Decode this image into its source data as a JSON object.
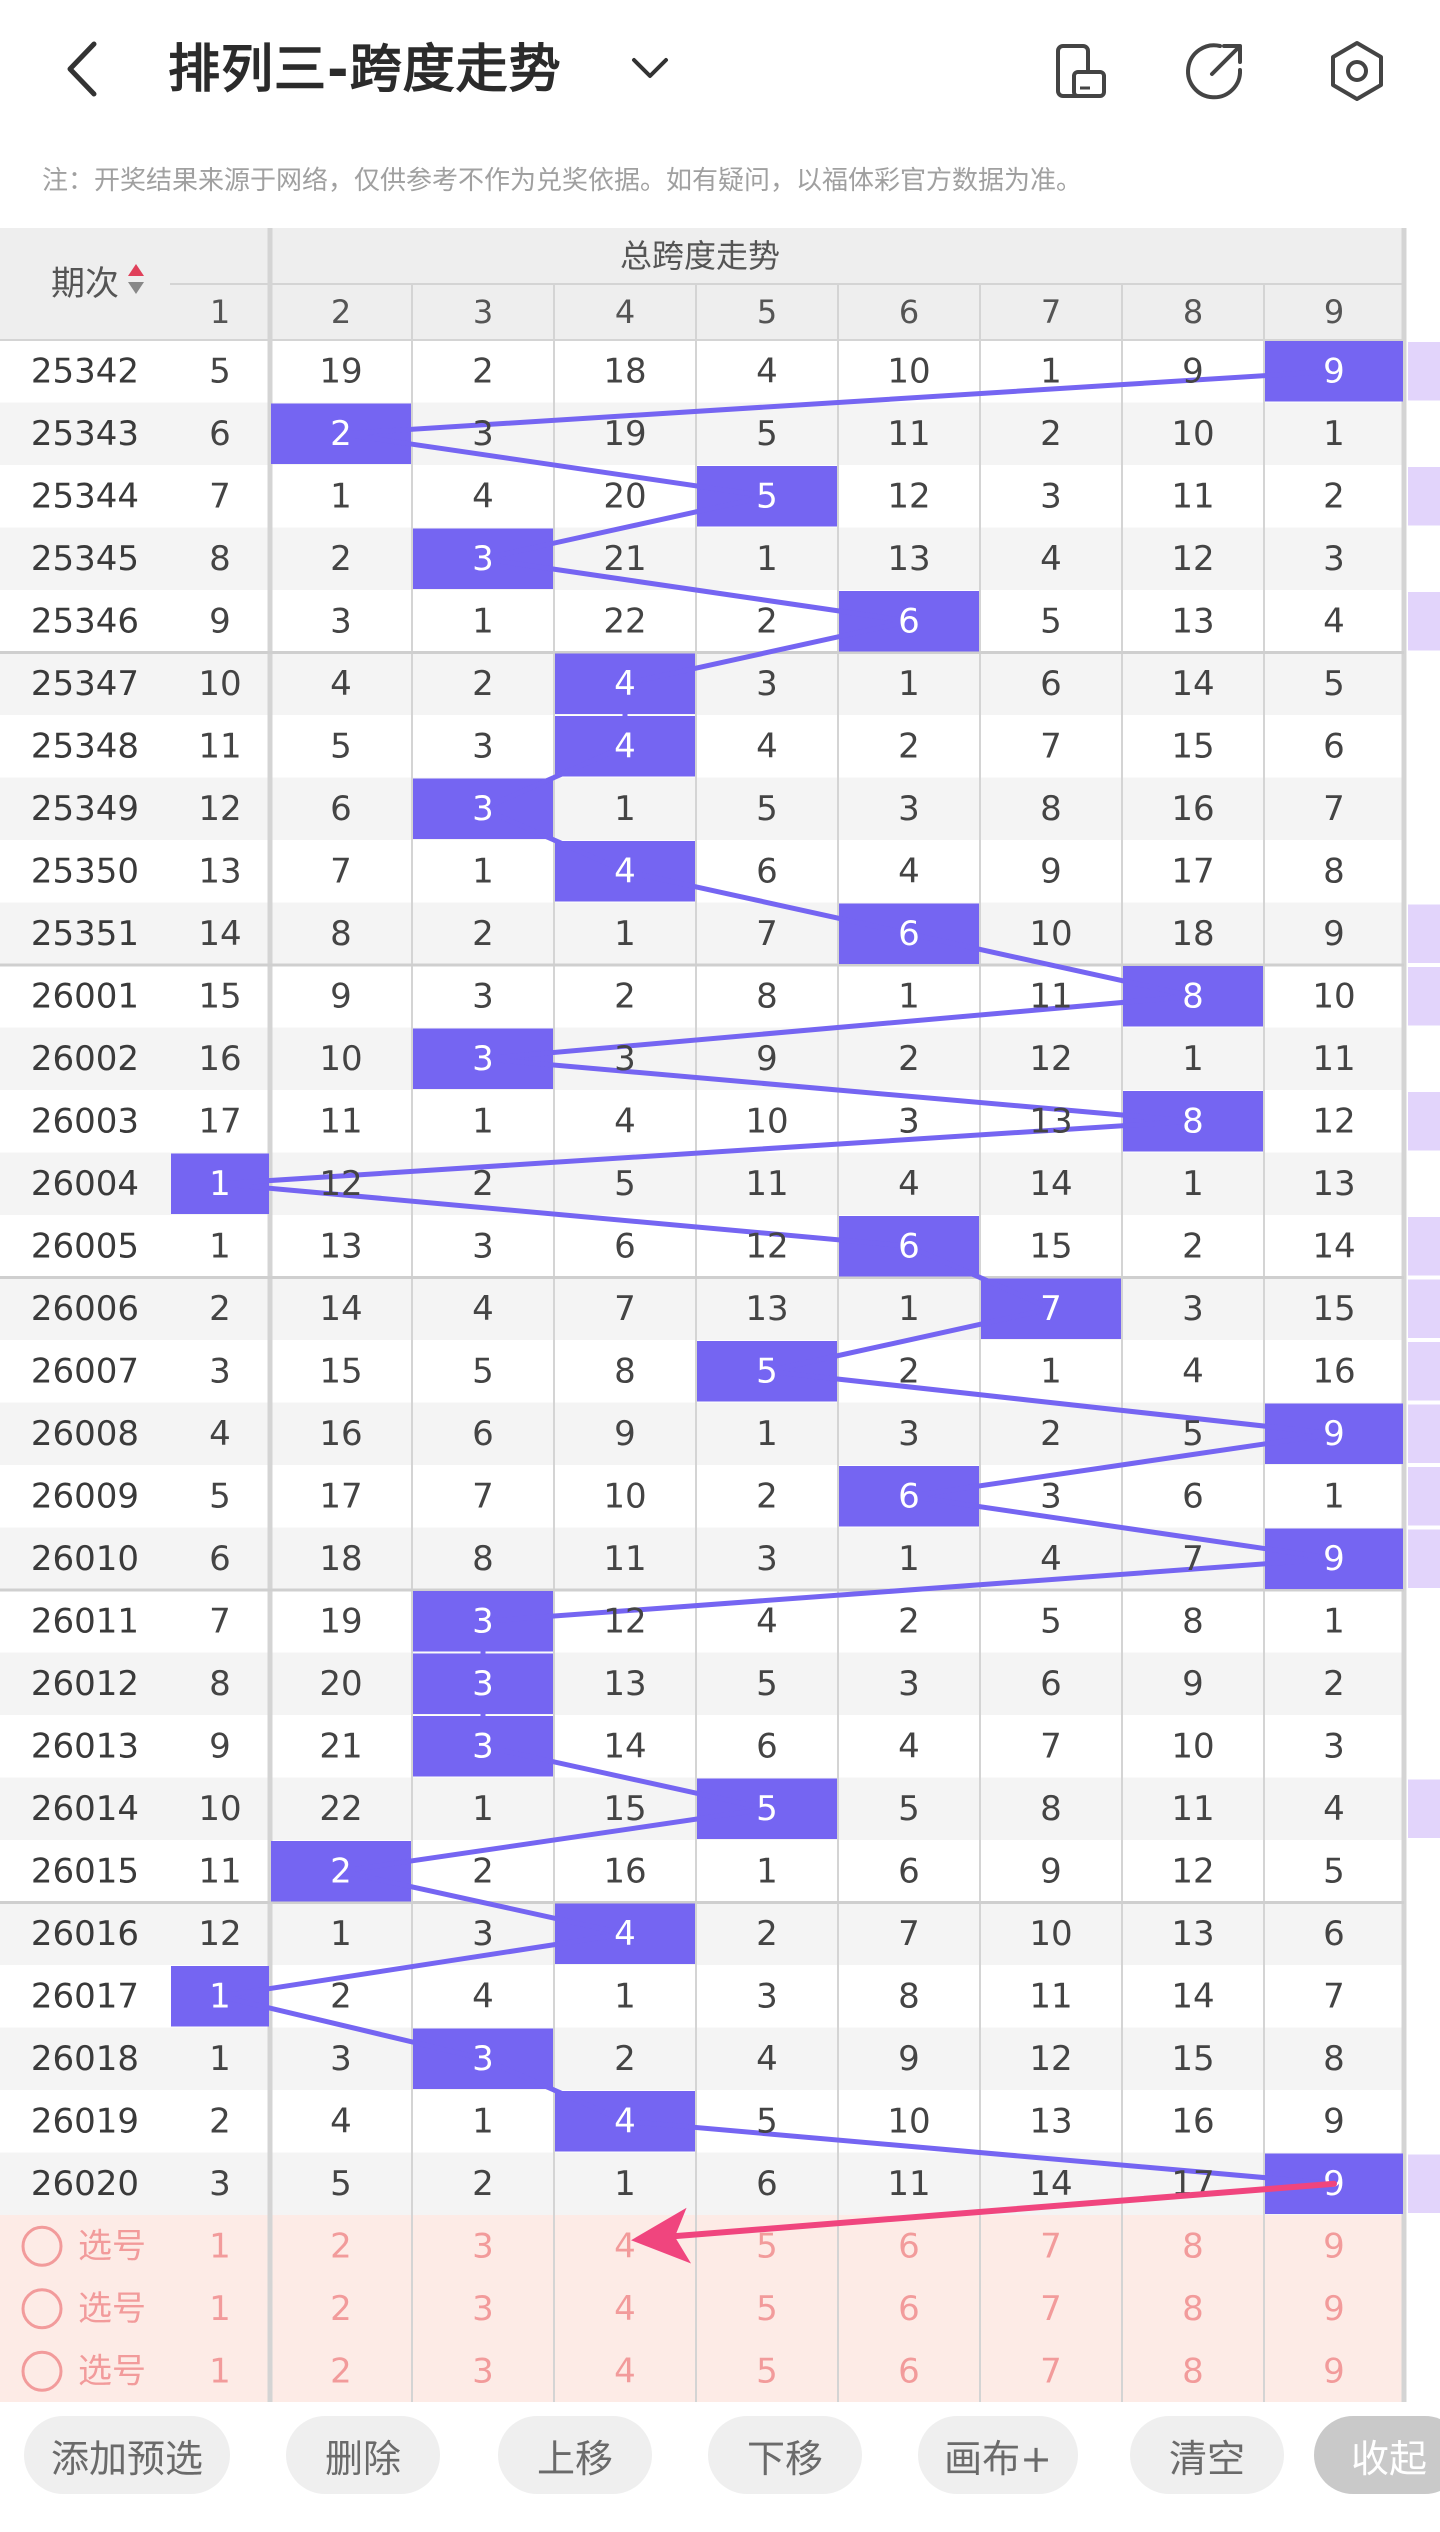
{
  "header": {
    "title": "排列三-跨度走势",
    "notice": "注：开奖结果来源于网络，仅供参考不作为兑奖依据。如有疑问，以福体彩官方数据为准。"
  },
  "table": {
    "period_header": "期次",
    "group_header": "总跨度走势",
    "columns": [
      "1",
      "2",
      "3",
      "4",
      "5",
      "6",
      "7",
      "8",
      "9"
    ],
    "rows": [
      {
        "period": "25342",
        "hit": 9,
        "cells": [
          "5",
          "19",
          "2",
          "18",
          "4",
          "10",
          "1",
          "9",
          "9"
        ],
        "mark": true
      },
      {
        "period": "25343",
        "hit": 2,
        "cells": [
          "6",
          "2",
          "3",
          "19",
          "5",
          "11",
          "2",
          "10",
          "1"
        ],
        "mark": false
      },
      {
        "period": "25344",
        "hit": 5,
        "cells": [
          "7",
          "1",
          "4",
          "20",
          "5",
          "12",
          "3",
          "11",
          "2"
        ],
        "mark": true
      },
      {
        "period": "25345",
        "hit": 3,
        "cells": [
          "8",
          "2",
          "3",
          "21",
          "1",
          "13",
          "4",
          "12",
          "3"
        ],
        "mark": false
      },
      {
        "period": "25346",
        "hit": 6,
        "cells": [
          "9",
          "3",
          "1",
          "22",
          "2",
          "6",
          "5",
          "13",
          "4"
        ],
        "mark": true
      },
      {
        "period": "25347",
        "hit": 4,
        "cells": [
          "10",
          "4",
          "2",
          "4",
          "3",
          "1",
          "6",
          "14",
          "5"
        ],
        "mark": false
      },
      {
        "period": "25348",
        "hit": 4,
        "cells": [
          "11",
          "5",
          "3",
          "4",
          "4",
          "2",
          "7",
          "15",
          "6"
        ],
        "mark": false
      },
      {
        "period": "25349",
        "hit": 3,
        "cells": [
          "12",
          "6",
          "3",
          "1",
          "5",
          "3",
          "8",
          "16",
          "7"
        ],
        "mark": false
      },
      {
        "period": "25350",
        "hit": 4,
        "cells": [
          "13",
          "7",
          "1",
          "4",
          "6",
          "4",
          "9",
          "17",
          "8"
        ],
        "mark": false
      },
      {
        "period": "25351",
        "hit": 6,
        "cells": [
          "14",
          "8",
          "2",
          "1",
          "7",
          "6",
          "10",
          "18",
          "9"
        ],
        "mark": true
      },
      {
        "period": "26001",
        "hit": 8,
        "cells": [
          "15",
          "9",
          "3",
          "2",
          "8",
          "1",
          "11",
          "8",
          "10"
        ],
        "mark": true
      },
      {
        "period": "26002",
        "hit": 3,
        "cells": [
          "16",
          "10",
          "3",
          "3",
          "9",
          "2",
          "12",
          "1",
          "11"
        ],
        "mark": false
      },
      {
        "period": "26003",
        "hit": 8,
        "cells": [
          "17",
          "11",
          "1",
          "4",
          "10",
          "3",
          "13",
          "8",
          "12"
        ],
        "mark": true
      },
      {
        "period": "26004",
        "hit": 1,
        "cells": [
          "1",
          "12",
          "2",
          "5",
          "11",
          "4",
          "14",
          "1",
          "13"
        ],
        "mark": false
      },
      {
        "period": "26005",
        "hit": 6,
        "cells": [
          "1",
          "13",
          "3",
          "6",
          "12",
          "6",
          "15",
          "2",
          "14"
        ],
        "mark": true
      },
      {
        "period": "26006",
        "hit": 7,
        "cells": [
          "2",
          "14",
          "4",
          "7",
          "13",
          "1",
          "7",
          "3",
          "15"
        ],
        "mark": true
      },
      {
        "period": "26007",
        "hit": 5,
        "cells": [
          "3",
          "15",
          "5",
          "8",
          "5",
          "2",
          "1",
          "4",
          "16"
        ],
        "mark": true
      },
      {
        "period": "26008",
        "hit": 9,
        "cells": [
          "4",
          "16",
          "6",
          "9",
          "1",
          "3",
          "2",
          "5",
          "9"
        ],
        "mark": true
      },
      {
        "period": "26009",
        "hit": 6,
        "cells": [
          "5",
          "17",
          "7",
          "10",
          "2",
          "6",
          "3",
          "6",
          "1"
        ],
        "mark": true
      },
      {
        "period": "26010",
        "hit": 9,
        "cells": [
          "6",
          "18",
          "8",
          "11",
          "3",
          "1",
          "4",
          "7",
          "9"
        ],
        "mark": true
      },
      {
        "period": "26011",
        "hit": 3,
        "cells": [
          "7",
          "19",
          "3",
          "12",
          "4",
          "2",
          "5",
          "8",
          "1"
        ],
        "mark": false
      },
      {
        "period": "26012",
        "hit": 3,
        "cells": [
          "8",
          "20",
          "3",
          "13",
          "5",
          "3",
          "6",
          "9",
          "2"
        ],
        "mark": false
      },
      {
        "period": "26013",
        "hit": 3,
        "cells": [
          "9",
          "21",
          "3",
          "14",
          "6",
          "4",
          "7",
          "10",
          "3"
        ],
        "mark": false
      },
      {
        "period": "26014",
        "hit": 5,
        "cells": [
          "10",
          "22",
          "1",
          "15",
          "5",
          "5",
          "8",
          "11",
          "4"
        ],
        "mark": true
      },
      {
        "period": "26015",
        "hit": 2,
        "cells": [
          "11",
          "2",
          "2",
          "16",
          "1",
          "6",
          "9",
          "12",
          "5"
        ],
        "mark": false
      },
      {
        "period": "26016",
        "hit": 4,
        "cells": [
          "12",
          "1",
          "3",
          "4",
          "2",
          "7",
          "10",
          "13",
          "6"
        ],
        "mark": false
      },
      {
        "period": "26017",
        "hit": 1,
        "cells": [
          "1",
          "2",
          "4",
          "1",
          "3",
          "8",
          "11",
          "14",
          "7"
        ],
        "mark": false
      },
      {
        "period": "26018",
        "hit": 3,
        "cells": [
          "1",
          "3",
          "3",
          "2",
          "4",
          "9",
          "12",
          "15",
          "8"
        ],
        "mark": false
      },
      {
        "period": "26019",
        "hit": 4,
        "cells": [
          "2",
          "4",
          "1",
          "4",
          "5",
          "10",
          "13",
          "16",
          "9"
        ],
        "mark": false
      },
      {
        "period": "26020",
        "hit": 9,
        "cells": [
          "3",
          "5",
          "2",
          "1",
          "6",
          "11",
          "14",
          "17",
          "9"
        ],
        "mark": true
      }
    ],
    "select_rows": [
      {
        "label": "选号",
        "cells": [
          "1",
          "2",
          "3",
          "4",
          "5",
          "6",
          "7",
          "8",
          "9"
        ]
      },
      {
        "label": "选号",
        "cells": [
          "1",
          "2",
          "3",
          "4",
          "5",
          "6",
          "7",
          "8",
          "9"
        ]
      },
      {
        "label": "选号",
        "cells": [
          "1",
          "2",
          "3",
          "4",
          "5",
          "6",
          "7",
          "8",
          "9"
        ]
      }
    ]
  },
  "toolbar": {
    "buttons": [
      "添加预选",
      "删除",
      "上移",
      "下移",
      "画布+",
      "清空",
      "收起"
    ]
  },
  "colors": {
    "accent": "#7565F2",
    "line": "#7565F2",
    "arrow": "#F0457E",
    "select_bg": "#FDEBE6",
    "select_text": "#F29B9B",
    "side_mark": "#E2D4FB"
  }
}
